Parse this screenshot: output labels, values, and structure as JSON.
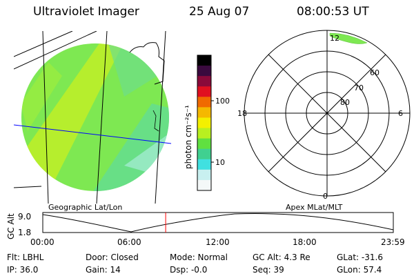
{
  "header": {
    "instrument": "Ultraviolet Imager",
    "date": "25 Aug 07",
    "time": "08:00:53 UT"
  },
  "colorbar": {
    "label": "photon cm⁻²s⁻¹",
    "ticks": [
      "100",
      "10"
    ],
    "colors": [
      "#000000",
      "#3a0a3e",
      "#8a0a3a",
      "#e01020",
      "#f06a00",
      "#f5b800",
      "#f4f000",
      "#b8f020",
      "#60e040",
      "#40d090",
      "#40e0e0",
      "#c8f0f0",
      "#f4f8f8"
    ]
  },
  "geo_panel": {
    "label": "Geographic Lat/Lon"
  },
  "polar_panel": {
    "label": "Apex MLat/MLT",
    "mlt_labels": {
      "top": "12",
      "left": "18",
      "right": "6",
      "bottom": "0"
    },
    "lat_labels": [
      "60",
      "70",
      "80"
    ]
  },
  "altitude_plot": {
    "ylabel": "GC Alt",
    "yticks": [
      "9.0",
      "1.8"
    ],
    "xticks": [
      "00:00",
      "06:00",
      "12:00",
      "18:00",
      "23:59"
    ],
    "current_time_fraction": 0.3506
  },
  "footer": {
    "filter": "Flt: LBHL",
    "door": "Door: Closed",
    "mode": "Mode: Normal",
    "gc_alt": "GC Alt: 4.3 Re",
    "glat": "GLat: -31.6",
    "ip": "IP: 36.0",
    "gain": "Gain: 14",
    "dsp": "Dsp:   -0.0",
    "seq": "Seq: 39",
    "glon": "GLon:  57.4"
  }
}
